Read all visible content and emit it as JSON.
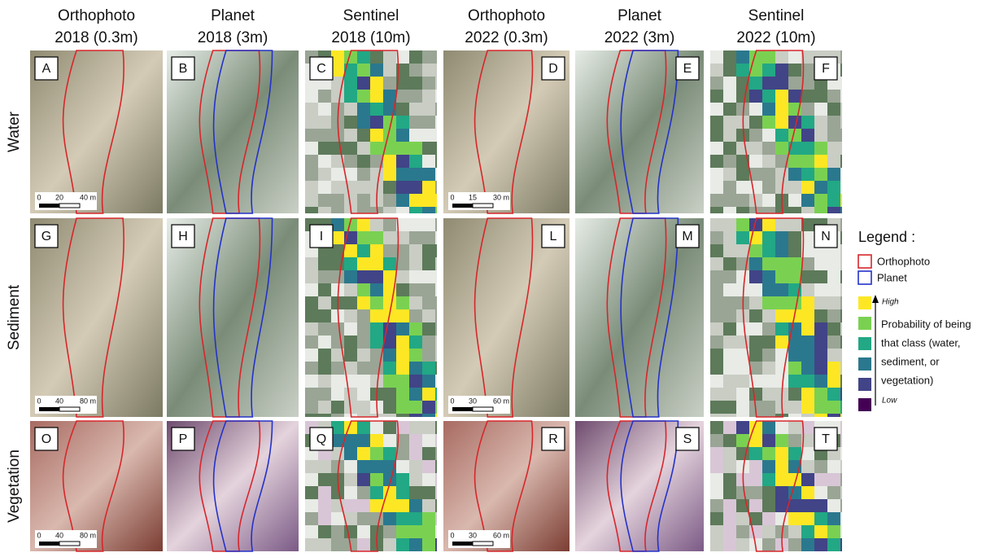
{
  "columns": [
    {
      "line1": "Orthophoto",
      "line2": "2018 (0.3m)"
    },
    {
      "line1": "Planet",
      "line2": "2018 (3m)"
    },
    {
      "line1": "Sentinel",
      "line2": "2018 (10m)"
    },
    {
      "line1": "Orthophoto",
      "line2": "2022 (0.3m)"
    },
    {
      "line1": "Planet",
      "line2": "2022 (3m)"
    },
    {
      "line1": "Sentinel",
      "line2": "2022 (10m)"
    }
  ],
  "rows": [
    "Water",
    "Sediment",
    "Vegetation"
  ],
  "panels": [
    {
      "letter": "A",
      "scale": [
        "0",
        "20",
        "40 m"
      ]
    },
    {
      "letter": "B"
    },
    {
      "letter": "C"
    },
    {
      "letter": "D",
      "scale": [
        "0",
        "15",
        "30 m"
      ]
    },
    {
      "letter": "E"
    },
    {
      "letter": "F"
    },
    {
      "letter": "G",
      "scale": [
        "0",
        "40",
        "80 m"
      ]
    },
    {
      "letter": "H"
    },
    {
      "letter": "I"
    },
    {
      "letter": "L",
      "scale": [
        "0",
        "30",
        "60 m"
      ]
    },
    {
      "letter": "M"
    },
    {
      "letter": "N"
    },
    {
      "letter": "O",
      "scale": [
        "0",
        "40",
        "80 m"
      ]
    },
    {
      "letter": "P"
    },
    {
      "letter": "Q"
    },
    {
      "letter": "R",
      "scale": [
        "0",
        "30",
        "60 m"
      ]
    },
    {
      "letter": "S"
    },
    {
      "letter": "T"
    }
  ],
  "legend": {
    "title": "Legend :",
    "items": [
      "Orthophoto",
      "Planet"
    ],
    "high": "High",
    "description": [
      "Probability of being",
      "that class (water,",
      "sediment, or",
      "vegetation)"
    ],
    "low": "Low"
  }
}
